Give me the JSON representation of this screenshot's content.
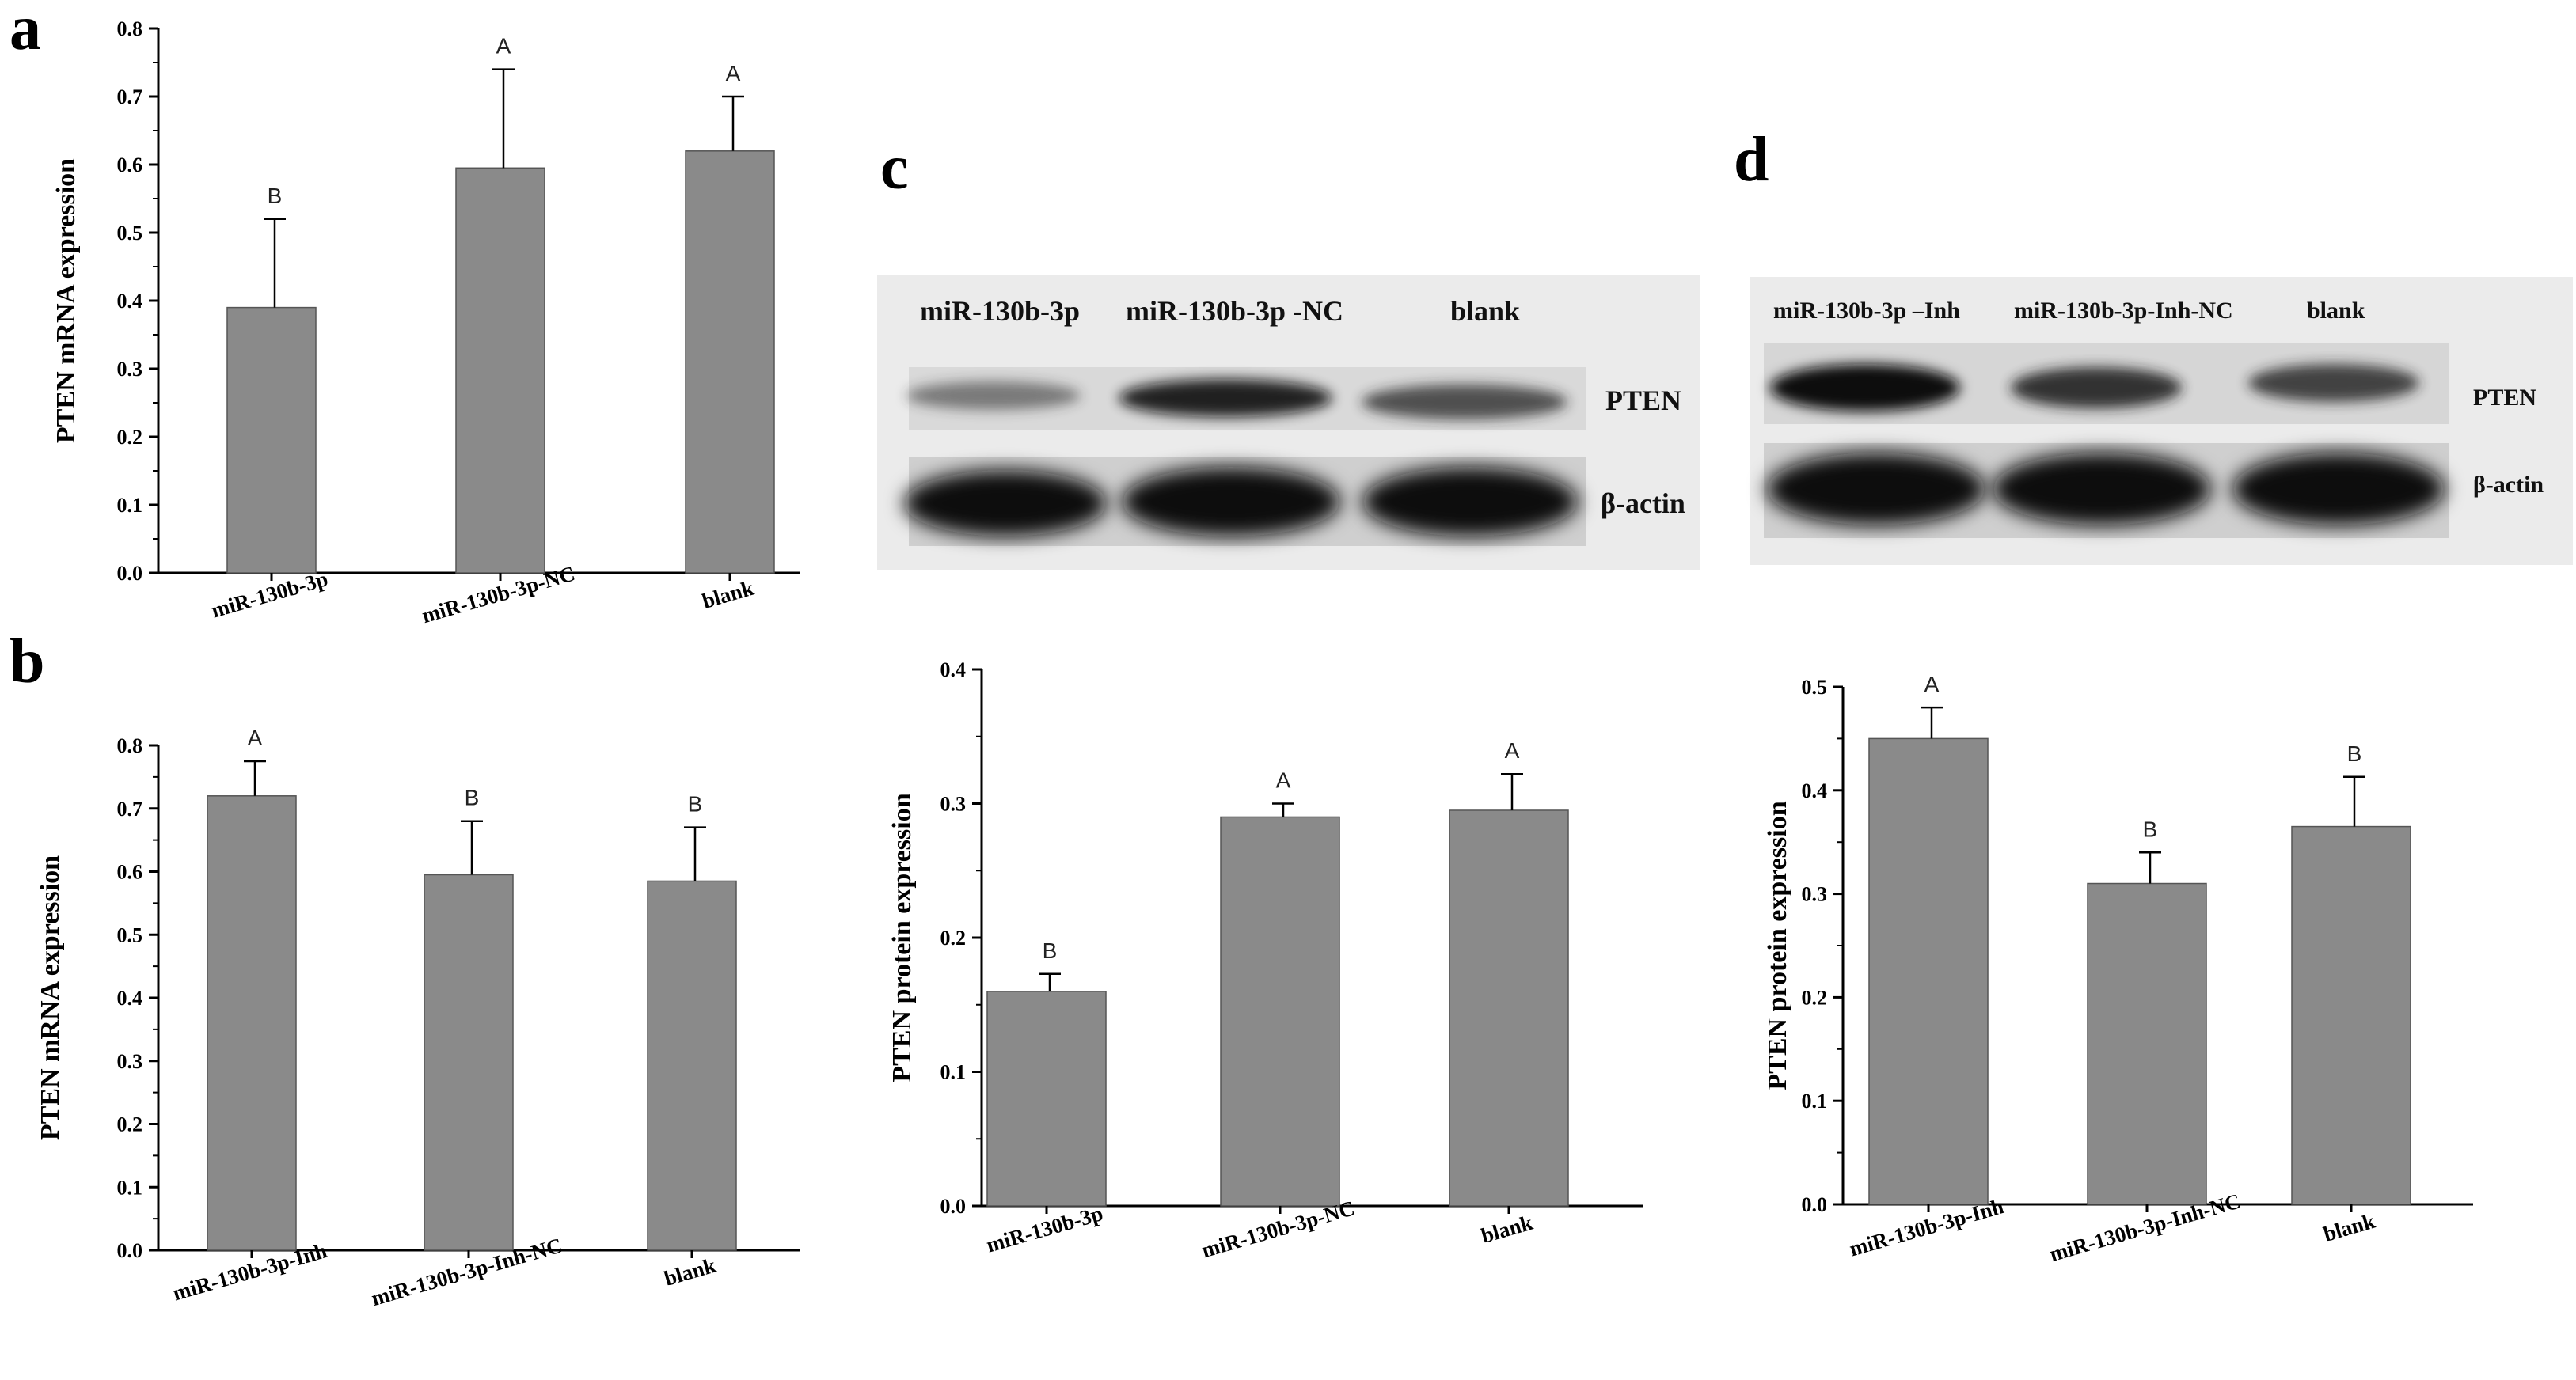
{
  "panel_letters": [
    "a",
    "b",
    "c",
    "d"
  ],
  "blots": {
    "c": {
      "lanes": [
        "miR-130b-3p",
        "miR-130b-3p -NC",
        "blank"
      ],
      "rows": [
        "PTEN",
        "β-actin"
      ]
    },
    "d": {
      "lanes": [
        "miR-130b-3p –Inh",
        "miR-130b-3p-Inh-NC",
        "blank"
      ],
      "rows": [
        "PTEN",
        "β-actin"
      ]
    }
  },
  "colors": {
    "bar": "#8a8a8a",
    "blot_bg": "#ebebeb",
    "band": "#0d0d0d"
  },
  "chart_data": [
    {
      "id": "a",
      "type": "bar",
      "categories": [
        "miR-130b-3p",
        "miR-130b-3p-NC",
        "blank"
      ],
      "values": [
        0.39,
        0.595,
        0.62
      ],
      "errors": [
        0.13,
        0.145,
        0.08
      ],
      "significance": [
        "B",
        "A",
        "A"
      ],
      "ylabel": "PTEN mRNA expression",
      "ylim": [
        0,
        0.8
      ],
      "yticks": [
        "0.0",
        "0.1",
        "0.2",
        "0.3",
        "0.4",
        "0.5",
        "0.6",
        "0.7",
        "0.8"
      ]
    },
    {
      "id": "b",
      "type": "bar",
      "categories": [
        "miR-130b-3p-Inh",
        "miR-130b-3p-Inh-NC",
        "blank"
      ],
      "values": [
        0.72,
        0.595,
        0.585
      ],
      "errors": [
        0.055,
        0.085,
        0.085
      ],
      "significance": [
        "A",
        "B",
        "B"
      ],
      "ylabel": "PTEN mRNA expression",
      "ylim": [
        0,
        0.8
      ],
      "yticks": [
        "0.0",
        "0.1",
        "0.2",
        "0.3",
        "0.4",
        "0.5",
        "0.6",
        "0.7",
        "0.8"
      ]
    },
    {
      "id": "c",
      "type": "bar",
      "categories": [
        "miR-130b-3p",
        "miR-130b-3p-NC",
        "blank"
      ],
      "values": [
        0.16,
        0.29,
        0.295
      ],
      "errors": [
        0.013,
        0.01,
        0.027
      ],
      "significance": [
        "B",
        "A",
        "A"
      ],
      "ylabel": "PTEN protein expression",
      "ylim": [
        0,
        0.4
      ],
      "yticks": [
        "0.0",
        "0.1",
        "0.2",
        "0.3",
        "0.4"
      ]
    },
    {
      "id": "d",
      "type": "bar",
      "categories": [
        "miR-130b-3p-Inh",
        "miR-130b-3p-Inh-NC",
        "blank"
      ],
      "values": [
        0.45,
        0.31,
        0.365
      ],
      "errors": [
        0.03,
        0.03,
        0.048
      ],
      "significance": [
        "A",
        "B",
        "B"
      ],
      "ylabel": "PTEN protein expression",
      "ylim": [
        0,
        0.5
      ],
      "yticks": [
        "0.0",
        "0.1",
        "0.2",
        "0.3",
        "0.4",
        "0.5"
      ]
    }
  ]
}
